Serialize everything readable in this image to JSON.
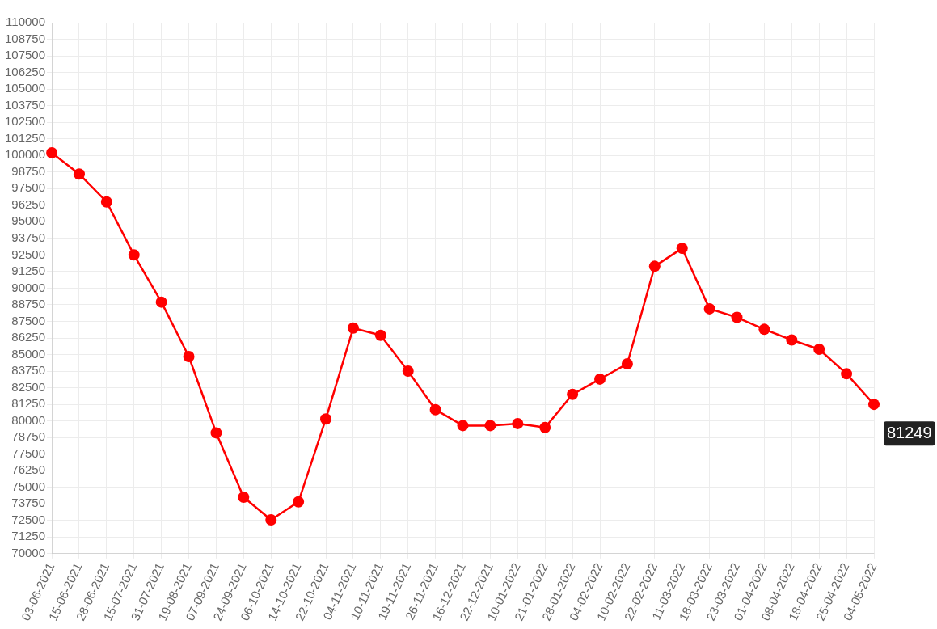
{
  "chart_data": {
    "type": "line",
    "categories": [
      "03-06-2021",
      "15-06-2021",
      "28-06-2021",
      "15-07-2021",
      "31-07-2021",
      "19-08-2021",
      "07-09-2021",
      "24-09-2021",
      "06-10-2021",
      "14-10-2021",
      "22-10-2021",
      "04-11-2021",
      "10-11-2021",
      "19-11-2021",
      "26-11-2021",
      "16-12-2021",
      "22-12-2021",
      "10-01-2022",
      "21-01-2022",
      "28-01-2022",
      "04-02-2022",
      "10-02-2022",
      "22-02-2022",
      "11-03-2022",
      "18-03-2022",
      "23-03-2022",
      "01-04-2022",
      "08-04-2022",
      "18-04-2022",
      "25-04-2022",
      "04-05-2022"
    ],
    "series": [
      {
        "color": "#ff0000",
        "values": [
          100200,
          98600,
          96500,
          92500,
          88950,
          84850,
          79100,
          74250,
          72550,
          73900,
          80150,
          87000,
          86450,
          83750,
          80850,
          79650,
          79650,
          79800,
          79500,
          82000,
          83150,
          84300,
          91650,
          93000,
          88450,
          87800,
          86900,
          86100,
          85400,
          83550,
          81249
        ]
      }
    ],
    "ylim": [
      70000,
      110000
    ],
    "yticks": [
      70000,
      71250,
      72500,
      73750,
      75000,
      76250,
      77500,
      78750,
      80000,
      81250,
      82500,
      83750,
      85000,
      86250,
      87500,
      88750,
      90000,
      91250,
      92500,
      93750,
      95000,
      96250,
      97500,
      98750,
      100000,
      101250,
      102500,
      103750,
      105000,
      106250,
      107500,
      108750,
      110000
    ],
    "grid": true,
    "marker": "circle",
    "line_style": "solid",
    "legend": false,
    "annotations": [
      {
        "text": "81249",
        "x": "04-05-2022",
        "y": 81249
      }
    ]
  }
}
